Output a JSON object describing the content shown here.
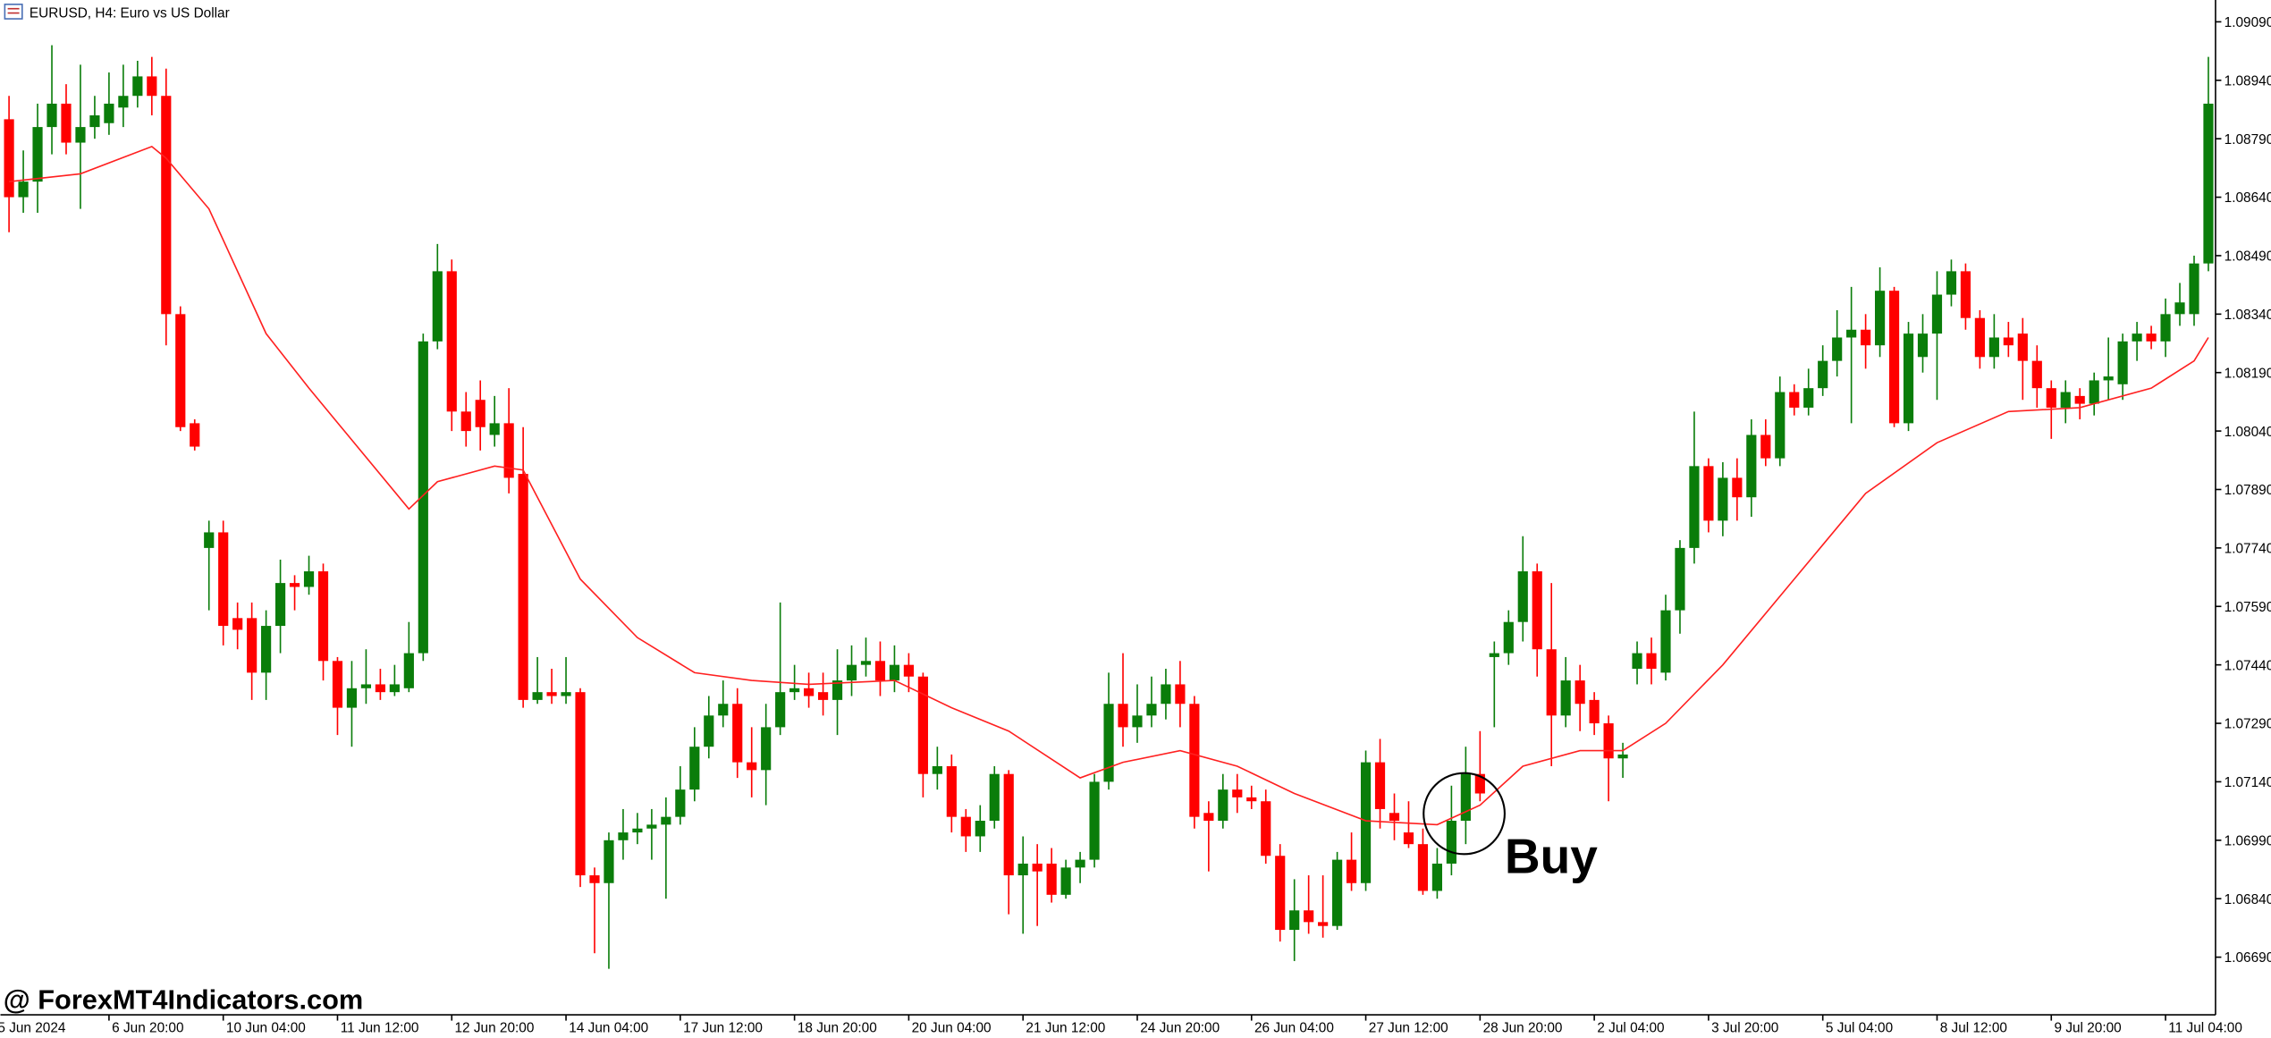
{
  "chart_data": {
    "type": "candlestick",
    "title": "EURUSD, H4:  Euro vs US Dollar",
    "watermark": "@ ForexMT4Indicators.com",
    "annotation": "Buy",
    "up_color": "#0a7d0a",
    "down_color": "#ff0000",
    "ylim": [
      1.06542,
      1.09146
    ],
    "yticks": [
      {
        "value": 1.0909,
        "label": "1.09090"
      },
      {
        "value": 1.0894,
        "label": "1.08940"
      },
      {
        "value": 1.0879,
        "label": "1.08790"
      },
      {
        "value": 1.0864,
        "label": "1.08640"
      },
      {
        "value": 1.0849,
        "label": "1.08490"
      },
      {
        "value": 1.0834,
        "label": "1.08340"
      },
      {
        "value": 1.0819,
        "label": "1.08190"
      },
      {
        "value": 1.0804,
        "label": "1.08040"
      },
      {
        "value": 1.0789,
        "label": "1.07890"
      },
      {
        "value": 1.0774,
        "label": "1.07740"
      },
      {
        "value": 1.0759,
        "label": "1.07590"
      },
      {
        "value": 1.0744,
        "label": "1.07440"
      },
      {
        "value": 1.0729,
        "label": "1.07290"
      },
      {
        "value": 1.0714,
        "label": "1.07140"
      },
      {
        "value": 1.0699,
        "label": "1.06990"
      },
      {
        "value": 1.0684,
        "label": "1.06840"
      },
      {
        "value": 1.0669,
        "label": "1.06690"
      }
    ],
    "xlim": [
      -0.6,
      154.5
    ],
    "xticks": [
      {
        "value": -1,
        "label": "5 Jun 2024"
      },
      {
        "value": 7,
        "label": "6 Jun 20:00"
      },
      {
        "value": 15,
        "label": "10 Jun 04:00"
      },
      {
        "value": 23,
        "label": "11 Jun 12:00"
      },
      {
        "value": 31,
        "label": "12 Jun 20:00"
      },
      {
        "value": 39,
        "label": "14 Jun 04:00"
      },
      {
        "value": 47,
        "label": "17 Jun 12:00"
      },
      {
        "value": 55,
        "label": "18 Jun 20:00"
      },
      {
        "value": 63,
        "label": "20 Jun 04:00"
      },
      {
        "value": 71,
        "label": "21 Jun 12:00"
      },
      {
        "value": 79,
        "label": "24 Jun 20:00"
      },
      {
        "value": 87,
        "label": "26 Jun 04:00"
      },
      {
        "value": 95,
        "label": "27 Jun 12:00"
      },
      {
        "value": 103,
        "label": "28 Jun 20:00"
      },
      {
        "value": 111,
        "label": "2 Jul 04:00"
      },
      {
        "value": 119,
        "label": "3 Jul 20:00"
      },
      {
        "value": 127,
        "label": "5 Jul 04:00"
      },
      {
        "value": 135,
        "label": "8 Jul 12:00"
      },
      {
        "value": 143,
        "label": "9 Jul 20:00"
      },
      {
        "value": 151,
        "label": "11 Jul 04:00"
      }
    ],
    "open": [
      1.0884,
      1.0864,
      1.0868,
      1.0882,
      1.0888,
      1.0878,
      1.0882,
      1.0883,
      1.0887,
      1.089,
      1.0895,
      1.089,
      1.0834,
      1.0806,
      1.0774,
      1.0778,
      1.0756,
      1.0756,
      1.0742,
      1.0754,
      1.0765,
      1.0764,
      1.0768,
      1.0745,
      1.0733,
      1.0738,
      1.0739,
      1.0737,
      1.0738,
      1.0747,
      1.0827,
      1.0845,
      1.0809,
      1.0812,
      1.0803,
      1.0806,
      1.0793,
      1.0735,
      1.0737,
      1.0736,
      1.0737,
      1.069,
      1.0688,
      1.0699,
      1.0701,
      1.0702,
      1.0703,
      1.0705,
      1.0712,
      1.0723,
      1.0731,
      1.0734,
      1.0719,
      1.0717,
      1.0728,
      1.0737,
      1.0738,
      1.0737,
      1.0735,
      1.074,
      1.0744,
      1.0745,
      1.074,
      1.0744,
      1.0741,
      1.0716,
      1.0718,
      1.0705,
      1.07,
      1.0704,
      1.0716,
      1.069,
      1.0693,
      1.0693,
      1.0685,
      1.0692,
      1.0694,
      1.0714,
      1.0734,
      1.0728,
      1.0731,
      1.0734,
      1.0739,
      1.0734,
      1.0706,
      1.0704,
      1.0712,
      1.071,
      1.0709,
      1.0695,
      1.0676,
      1.0681,
      1.0678,
      1.0677,
      1.0694,
      1.0688,
      1.0719,
      1.0706,
      1.0701,
      1.0698,
      1.0686,
      1.0693,
      1.0704,
      1.0716,
      1.0746,
      1.0747,
      1.0755,
      1.0768,
      1.0748,
      1.0731,
      1.074,
      1.0735,
      1.0729,
      1.072,
      1.0743,
      1.0747,
      1.0742,
      1.0758,
      1.0774,
      1.0795,
      1.0781,
      1.0792,
      1.0787,
      1.0803,
      1.0797,
      1.0814,
      1.081,
      1.0815,
      1.0822,
      1.0828,
      1.083,
      1.0826,
      1.084,
      1.0806,
      1.0823,
      1.0829,
      1.0839,
      1.0845,
      1.0833,
      1.0823,
      1.0828,
      1.0829,
      1.0822,
      1.0815,
      1.081,
      1.0813,
      1.0811,
      1.0817,
      1.0816,
      1.0827,
      1.0829,
      1.0827,
      1.0834,
      1.0834,
      1.0847
    ],
    "high": [
      1.089,
      1.0876,
      1.0888,
      1.0903,
      1.0893,
      1.0898,
      1.089,
      1.0896,
      1.0898,
      1.0899,
      1.09,
      1.0897,
      1.0836,
      1.0807,
      1.0781,
      1.0781,
      1.076,
      1.076,
      1.0758,
      1.0771,
      1.0767,
      1.0772,
      1.077,
      1.0746,
      1.0745,
      1.0748,
      1.0743,
      1.0744,
      1.0755,
      1.0829,
      1.0852,
      1.0848,
      1.0814,
      1.0817,
      1.0813,
      1.0815,
      1.0805,
      1.0746,
      1.0743,
      1.0746,
      1.0738,
      1.0692,
      1.0701,
      1.0707,
      1.0706,
      1.0707,
      1.071,
      1.0718,
      1.0728,
      1.0736,
      1.074,
      1.0738,
      1.0728,
      1.0734,
      1.076,
      1.0744,
      1.0742,
      1.0742,
      1.0748,
      1.0749,
      1.0751,
      1.075,
      1.0749,
      1.0747,
      1.0742,
      1.0723,
      1.0721,
      1.0707,
      1.0708,
      1.0718,
      1.0717,
      1.07,
      1.0698,
      1.0697,
      1.0694,
      1.0696,
      1.0716,
      1.0742,
      1.0747,
      1.0739,
      1.0741,
      1.0743,
      1.0745,
      1.0736,
      1.0709,
      1.0716,
      1.0716,
      1.0713,
      1.0712,
      1.0698,
      1.0689,
      1.069,
      1.069,
      1.0696,
      1.0701,
      1.0722,
      1.0725,
      1.0711,
      1.0709,
      1.0702,
      1.0697,
      1.0713,
      1.0723,
      1.0727,
      1.075,
      1.0758,
      1.0777,
      1.077,
      1.0765,
      1.0746,
      1.0744,
      1.0737,
      1.0731,
      1.0724,
      1.075,
      1.0751,
      1.0762,
      1.0776,
      1.0809,
      1.0797,
      1.0796,
      1.0797,
      1.0807,
      1.0807,
      1.0818,
      1.0816,
      1.082,
      1.0826,
      1.0835,
      1.0841,
      1.0834,
      1.0846,
      1.0841,
      1.0832,
      1.0834,
      1.0845,
      1.0848,
      1.0847,
      1.0835,
      1.0834,
      1.0832,
      1.0833,
      1.0826,
      1.0817,
      1.0817,
      1.0815,
      1.0819,
      1.0828,
      1.0829,
      1.0832,
      1.0831,
      1.0838,
      1.0842,
      1.0849,
      1.09
    ],
    "low": [
      1.0855,
      1.086,
      1.086,
      1.0875,
      1.0875,
      1.0861,
      1.0879,
      1.088,
      1.0882,
      1.0887,
      1.0885,
      1.0826,
      1.0804,
      1.0799,
      1.0758,
      1.0749,
      1.0748,
      1.0735,
      1.0735,
      1.0747,
      1.0758,
      1.0762,
      1.074,
      1.0726,
      1.0723,
      1.0734,
      1.0735,
      1.0736,
      1.0737,
      1.0745,
      1.0825,
      1.0804,
      1.08,
      1.0799,
      1.08,
      1.0788,
      1.0733,
      1.0734,
      1.0734,
      1.0734,
      1.0687,
      1.067,
      1.0666,
      1.0694,
      1.0698,
      1.0694,
      1.0684,
      1.0703,
      1.0709,
      1.072,
      1.0728,
      1.0715,
      1.071,
      1.0708,
      1.0726,
      1.0735,
      1.0733,
      1.0731,
      1.0726,
      1.0736,
      1.0741,
      1.0736,
      1.0737,
      1.0737,
      1.071,
      1.0712,
      1.0701,
      1.0696,
      1.0696,
      1.0702,
      1.068,
      1.0675,
      1.0677,
      1.0683,
      1.0684,
      1.0688,
      1.0692,
      1.0712,
      1.0723,
      1.0724,
      1.0728,
      1.073,
      1.0728,
      1.0702,
      1.0691,
      1.0702,
      1.0706,
      1.0707,
      1.0693,
      1.0673,
      1.0668,
      1.0675,
      1.0674,
      1.0676,
      1.0686,
      1.0686,
      1.0702,
      1.0699,
      1.0697,
      1.0685,
      1.0684,
      1.069,
      1.0698,
      1.0709,
      1.0728,
      1.0744,
      1.075,
      1.0741,
      1.0718,
      1.0728,
      1.0727,
      1.0726,
      1.0709,
      1.0715,
      1.0739,
      1.0739,
      1.074,
      1.0752,
      1.077,
      1.0778,
      1.0777,
      1.0781,
      1.0782,
      1.0795,
      1.0795,
      1.0808,
      1.0808,
      1.0813,
      1.0818,
      1.0806,
      1.082,
      1.0823,
      1.0805,
      1.0804,
      1.0819,
      1.0812,
      1.0836,
      1.083,
      1.082,
      1.082,
      1.0823,
      1.0812,
      1.081,
      1.0802,
      1.0806,
      1.0807,
      1.0808,
      1.0812,
      1.0812,
      1.0822,
      1.0825,
      1.0823,
      1.0831,
      1.0831,
      1.0845
    ],
    "close": [
      1.0864,
      1.0868,
      1.0882,
      1.0888,
      1.0878,
      1.0882,
      1.0885,
      1.0888,
      1.089,
      1.0895,
      1.089,
      1.0834,
      1.0805,
      1.08,
      1.0778,
      1.0754,
      1.0753,
      1.0742,
      1.0754,
      1.0765,
      1.0764,
      1.0768,
      1.0745,
      1.0733,
      1.0738,
      1.0739,
      1.0737,
      1.0739,
      1.0747,
      1.0827,
      1.0845,
      1.0809,
      1.0804,
      1.0805,
      1.0806,
      1.0792,
      1.0735,
      1.0737,
      1.0736,
      1.0737,
      1.069,
      1.0688,
      1.0699,
      1.0701,
      1.0702,
      1.0703,
      1.0705,
      1.0712,
      1.0723,
      1.0731,
      1.0734,
      1.0719,
      1.0717,
      1.0728,
      1.0737,
      1.0738,
      1.0736,
      1.0735,
      1.074,
      1.0744,
      1.0745,
      1.074,
      1.0744,
      1.0741,
      1.0716,
      1.0718,
      1.0705,
      1.07,
      1.0704,
      1.0716,
      1.069,
      1.0693,
      1.0691,
      1.0685,
      1.0692,
      1.0694,
      1.0714,
      1.0734,
      1.0728,
      1.0731,
      1.0734,
      1.0739,
      1.0734,
      1.0705,
      1.0704,
      1.0712,
      1.071,
      1.0709,
      1.0695,
      1.0676,
      1.0681,
      1.0678,
      1.0677,
      1.0694,
      1.0688,
      1.0719,
      1.0707,
      1.0704,
      1.0698,
      1.0686,
      1.0693,
      1.0704,
      1.0716,
      1.0711,
      1.0747,
      1.0755,
      1.0768,
      1.0748,
      1.0731,
      1.074,
      1.0734,
      1.0729,
      1.072,
      1.0721,
      1.0747,
      1.0743,
      1.0758,
      1.0774,
      1.0795,
      1.0781,
      1.0792,
      1.0787,
      1.0803,
      1.0797,
      1.0814,
      1.081,
      1.0815,
      1.0822,
      1.0828,
      1.083,
      1.0826,
      1.084,
      1.0806,
      1.0829,
      1.0829,
      1.0839,
      1.0845,
      1.0833,
      1.0823,
      1.0828,
      1.0826,
      1.0822,
      1.0815,
      1.081,
      1.0814,
      1.0811,
      1.0817,
      1.0818,
      1.0827,
      1.0829,
      1.0827,
      1.0834,
      1.0837,
      1.0847,
      1.0888
    ],
    "ma": {
      "color": "#ff2020",
      "x": [
        0,
        5,
        10,
        11,
        14,
        18,
        21,
        28,
        30,
        34,
        36,
        40,
        44,
        48,
        52,
        56,
        62,
        66,
        70,
        75,
        78,
        82,
        86,
        90,
        95,
        100,
        103,
        106,
        110,
        113,
        116,
        120,
        125,
        130,
        135,
        140,
        145,
        150,
        153,
        154
      ],
      "values": [
        1.0868,
        1.087,
        1.0877,
        1.0874,
        1.0861,
        1.0829,
        1.0815,
        1.0784,
        1.0791,
        1.0795,
        1.0794,
        1.0766,
        1.0751,
        1.0742,
        1.074,
        1.0739,
        1.074,
        1.0733,
        1.0727,
        1.0715,
        1.0719,
        1.0722,
        1.0718,
        1.0711,
        1.0704,
        1.0703,
        1.0708,
        1.0718,
        1.0722,
        1.0722,
        1.0729,
        1.0744,
        1.0766,
        1.0788,
        1.0801,
        1.0809,
        1.081,
        1.0815,
        1.0822,
        1.0828
      ]
    }
  }
}
